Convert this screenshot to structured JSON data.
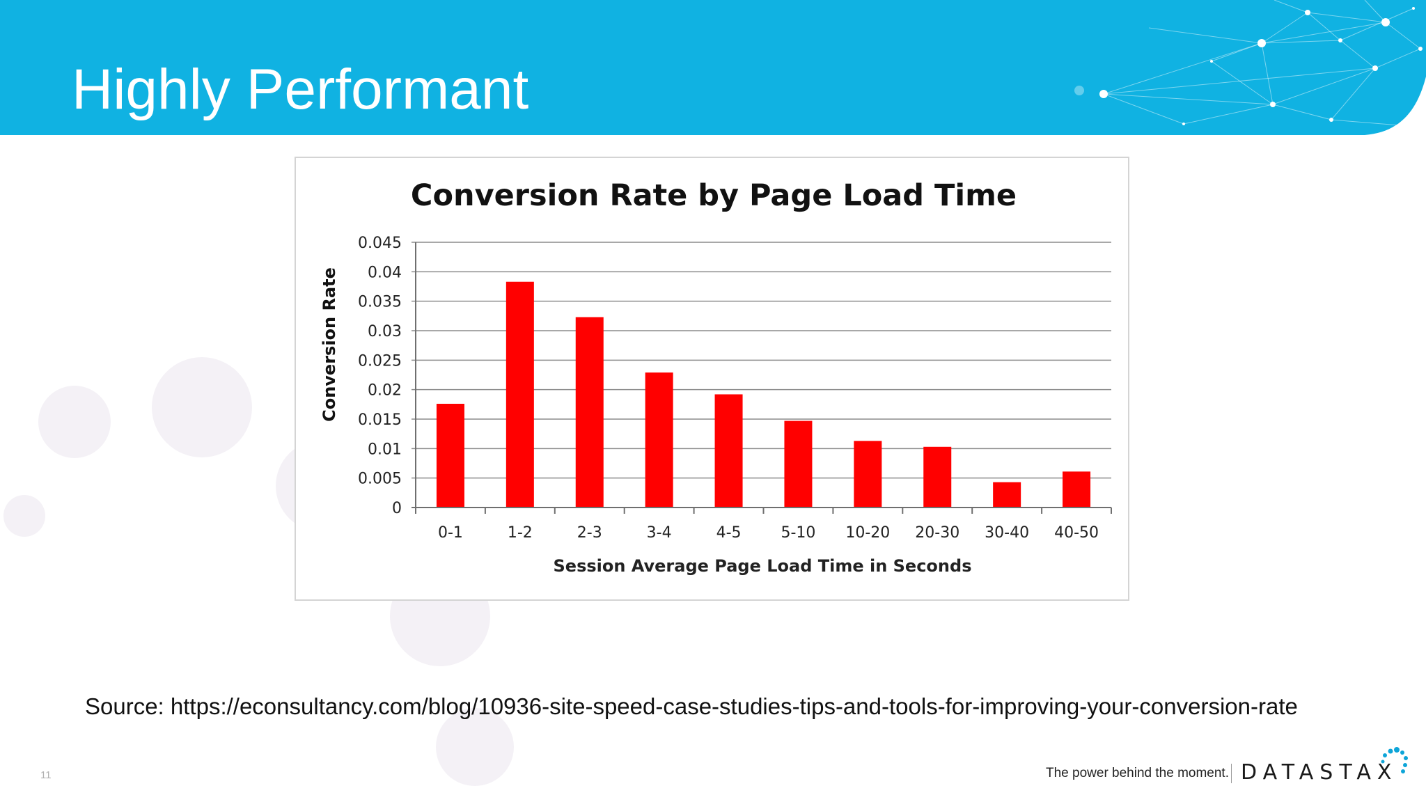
{
  "slide": {
    "title": "Highly Performant",
    "source": "Source: https://econsultancy.com/blog/10936-site-speed-case-studies-tips-and-tools-for-improving-your-conversion-rate",
    "page_number": "11",
    "tagline": "The power behind the moment.",
    "logo_text": "DATASTAX"
  },
  "colors": {
    "header": "#10b2e2",
    "bar": "#ff0000",
    "gridline": "#8c8c8c"
  },
  "chart_data": {
    "type": "bar",
    "title": "Conversion Rate by Page Load Time",
    "xlabel": "Session Average Page Load Time in Seconds",
    "ylabel": "Conversion Rate",
    "categories": [
      "0-1",
      "1-2",
      "2-3",
      "3-4",
      "4-5",
      "5-10",
      "10-20",
      "20-30",
      "30-40",
      "40-50"
    ],
    "values": [
      0.0176,
      0.0383,
      0.0323,
      0.0229,
      0.0192,
      0.0147,
      0.0113,
      0.0103,
      0.0043,
      0.0061
    ],
    "yticks": [
      "0",
      "0.005",
      "0.01",
      "0.015",
      "0.02",
      "0.025",
      "0.03",
      "0.035",
      "0.04",
      "0.045"
    ],
    "ylim": [
      0,
      0.045
    ],
    "grid": true,
    "legend": "none"
  }
}
